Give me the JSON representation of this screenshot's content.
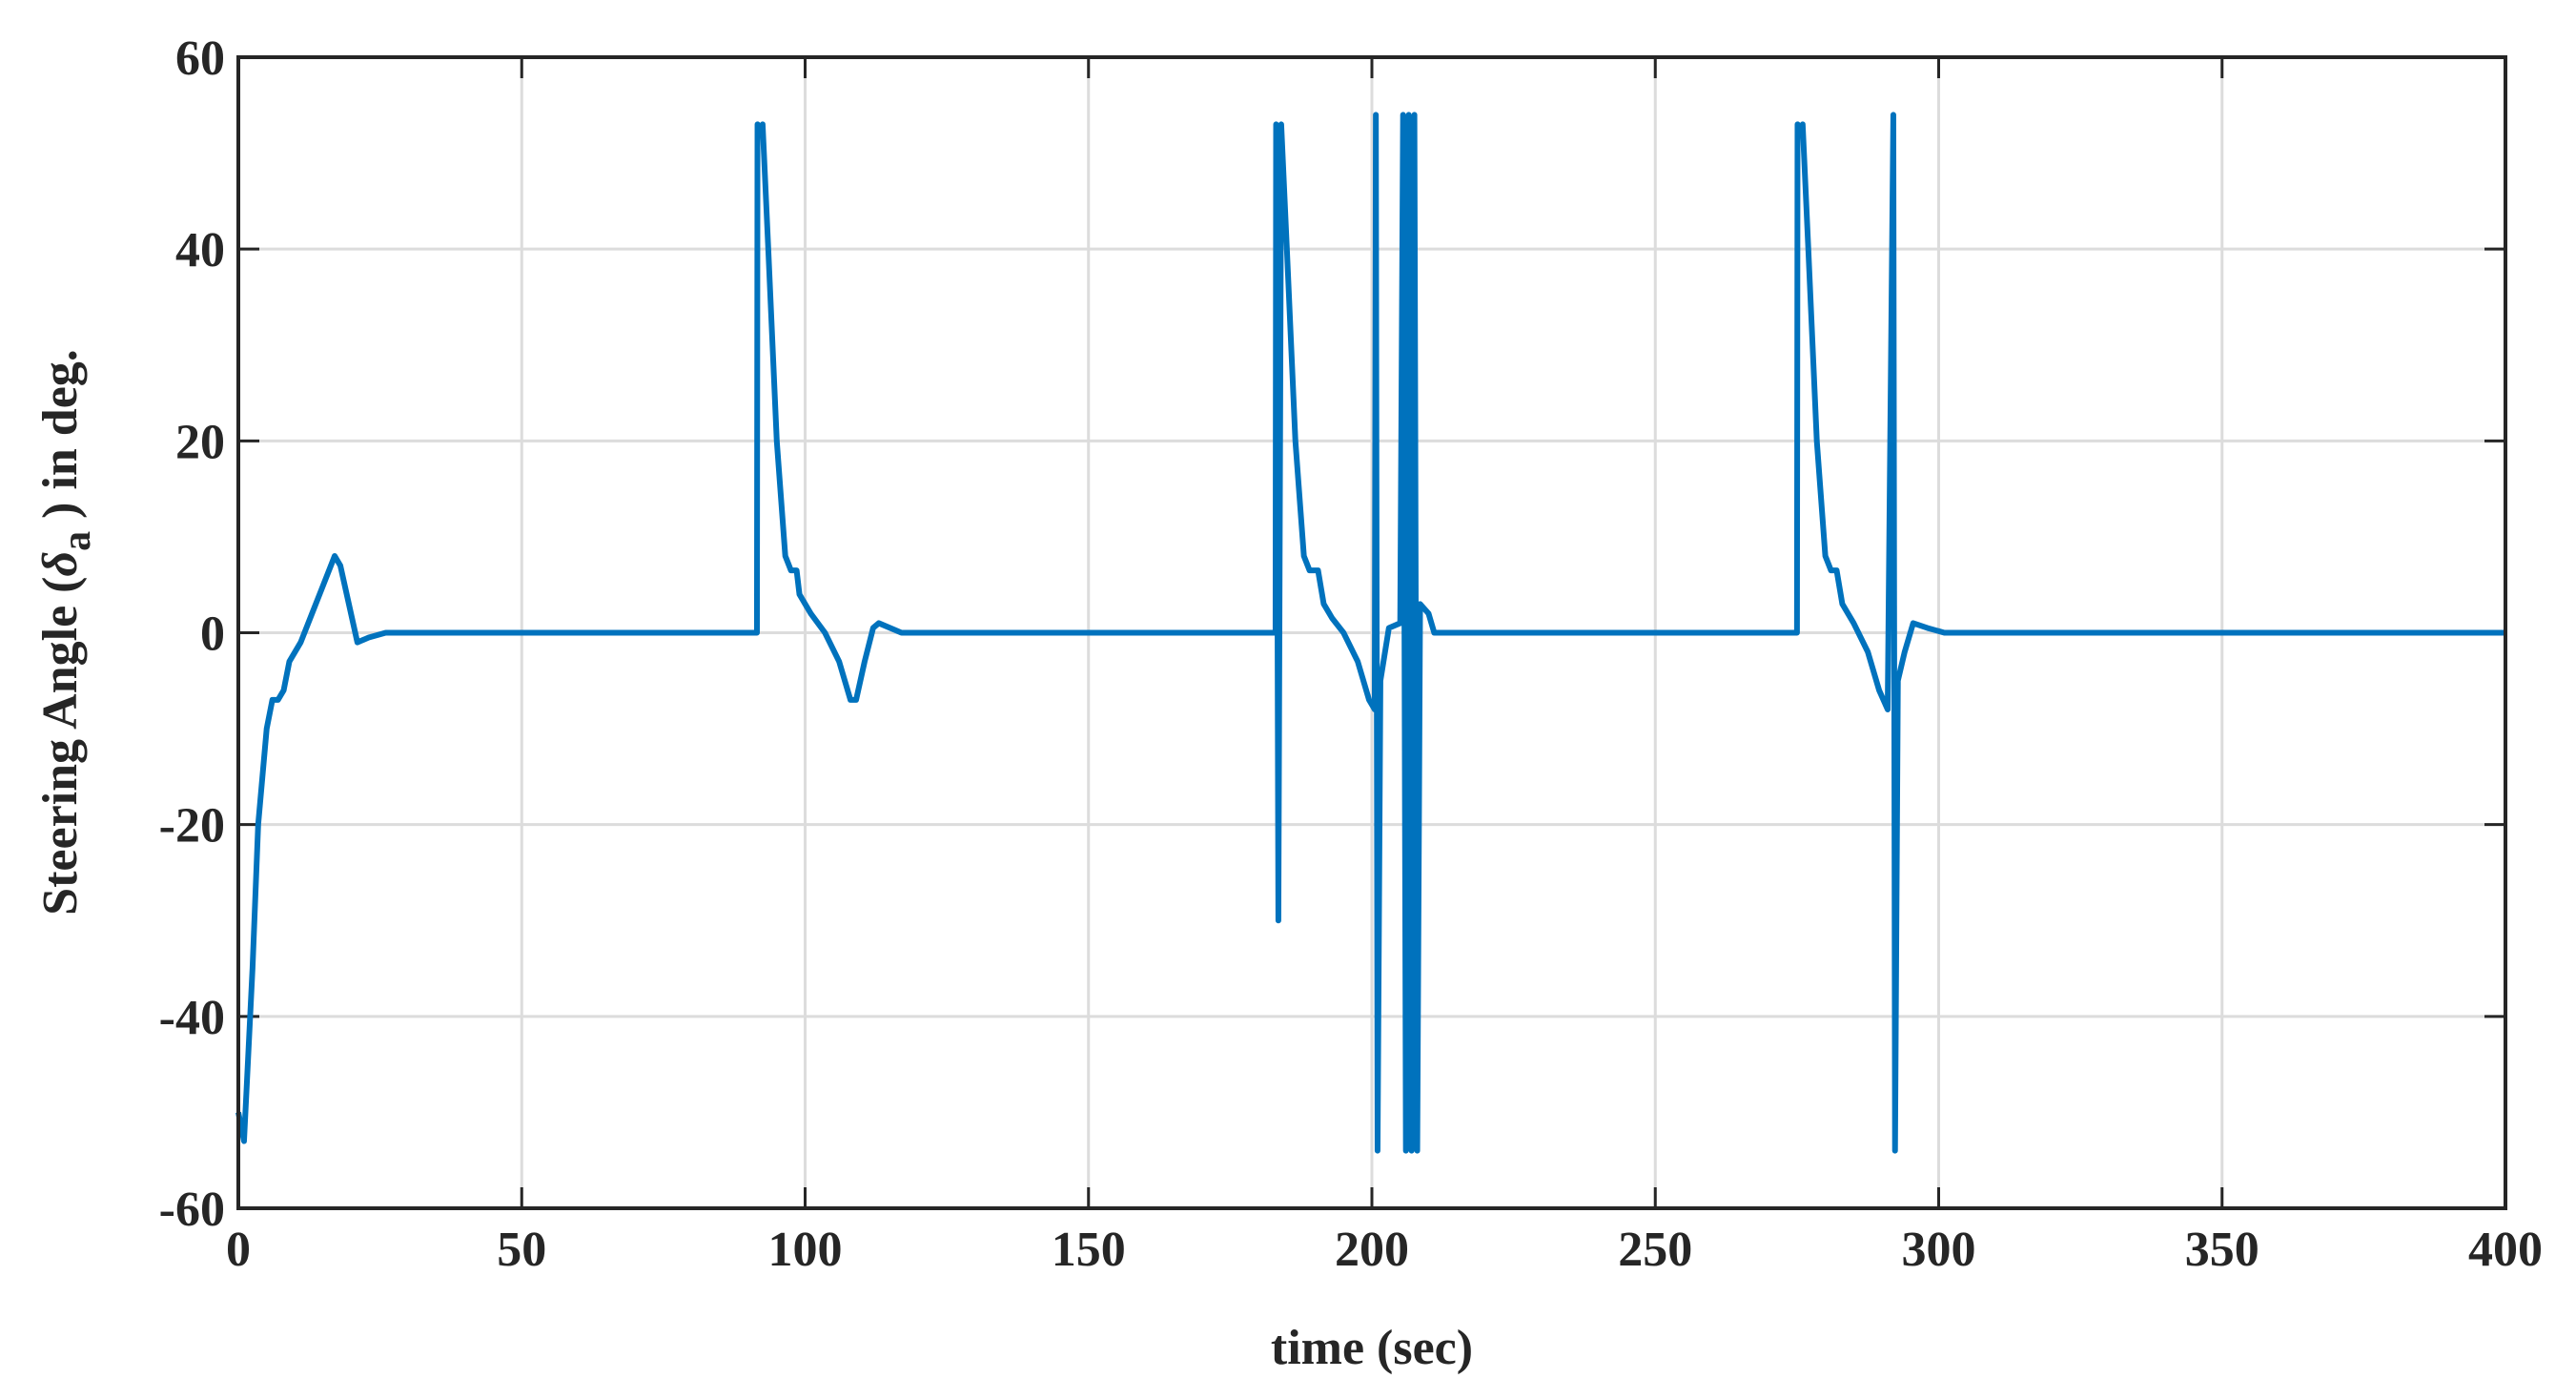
{
  "chart_data": {
    "type": "line",
    "x_label": "time (sec)",
    "y_label_parts": [
      "Steering Angle (",
      "δ",
      "a",
      " ) in deg."
    ],
    "xlim": [
      0,
      400
    ],
    "xticks": [
      0,
      50,
      100,
      150,
      200,
      250,
      300,
      350,
      400
    ],
    "ylim": [
      -60,
      60
    ],
    "yticks": [
      -60,
      -40,
      -20,
      0,
      20,
      40,
      60
    ],
    "grid": true,
    "series": [
      {
        "color": "#0072bd",
        "x": [
          0,
          1,
          1.5,
          2.5,
          3.5,
          5,
          6,
          7,
          8,
          9,
          11,
          13,
          15,
          17,
          18,
          19.5,
          21,
          23,
          26,
          91.5,
          91.6,
          92,
          92.5,
          93.5,
          95,
          96.5,
          97.5,
          98.5,
          99,
          101,
          103.5,
          106,
          108,
          109,
          110.5,
          112,
          113,
          117,
          183,
          183.1,
          183.5,
          184,
          185,
          186.5,
          188,
          189,
          190.5,
          191.5,
          193,
          195,
          197.5,
          199.5,
          200.5,
          200.7,
          201,
          201.5,
          203,
          205,
          205.5,
          206,
          206.5,
          207,
          207.5,
          208,
          208.5,
          210,
          211,
          275,
          275.1,
          275.5,
          276,
          277,
          278.5,
          280,
          281,
          282,
          283,
          285,
          287.5,
          289.5,
          291,
          292,
          292.3,
          292.8,
          294,
          295.5,
          298,
          301,
          400
        ],
        "values": [
          -50,
          -53,
          -47,
          -35,
          -20,
          -10,
          -7,
          -7,
          -6,
          -3,
          -1,
          2,
          5,
          8,
          7,
          3,
          -1,
          -0.5,
          0,
          0,
          53,
          52,
          53,
          40,
          20,
          8,
          6.5,
          6.5,
          4,
          2,
          0,
          -3,
          -7,
          -7,
          -3,
          0.5,
          1,
          0,
          0,
          53,
          -30,
          53,
          40,
          20,
          8,
          6.5,
          6.5,
          3,
          1.5,
          0,
          -3,
          -7,
          -8,
          54,
          -54,
          -5,
          0.5,
          1,
          54,
          -54,
          54,
          -54,
          54,
          -54,
          3,
          2,
          0,
          0,
          53,
          52,
          53,
          40,
          20,
          8,
          6.5,
          6.5,
          3,
          1,
          -2,
          -6,
          -8,
          54,
          -54,
          -5,
          -2,
          1,
          0.5,
          0,
          0
        ]
      }
    ]
  }
}
